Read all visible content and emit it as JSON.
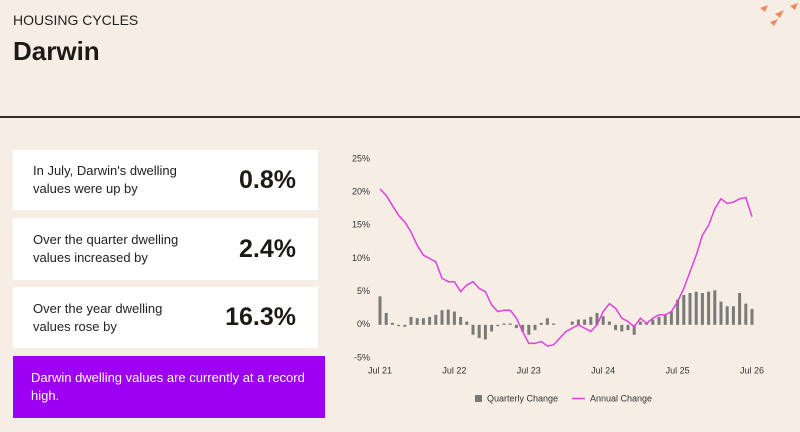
{
  "header": {
    "kicker": "HOUSING CYCLES",
    "title": "Darwin"
  },
  "stats": [
    {
      "text": "In July, Darwin's dwelling values were up by",
      "value": "0.8%"
    },
    {
      "text": "Over the quarter dwelling values increased by",
      "value": "2.4%"
    },
    {
      "text": "Over the year dwelling values rose by",
      "value": "16.3%"
    }
  ],
  "note": "Darwin dwelling values are currently at a record high.",
  "chart_data": {
    "type": "bar-line",
    "categories": [
      "Jul 21",
      null,
      null,
      null,
      null,
      null,
      null,
      null,
      null,
      null,
      null,
      null,
      "Jul 22",
      null,
      null,
      null,
      null,
      null,
      null,
      null,
      null,
      null,
      null,
      null,
      "Jul 23",
      null,
      null,
      null,
      null,
      null,
      null,
      null,
      null,
      null,
      null,
      null,
      "Jul 24",
      null,
      null,
      null,
      null,
      null,
      null,
      null,
      null,
      null,
      null,
      null,
      "Jul 25",
      null,
      null,
      null,
      null,
      null,
      null,
      null,
      null,
      null,
      null,
      null,
      "Jul 26"
    ],
    "series": [
      {
        "name": "Quarterly Change",
        "type": "bar",
        "color": "#7b7a76",
        "values": [
          4.3,
          1.8,
          0.3,
          -0.2,
          -0.3,
          1.2,
          1,
          1,
          1.2,
          1.5,
          2.2,
          2.3,
          2,
          1.2,
          0.5,
          -1.5,
          -2,
          -2.2,
          -1,
          -0.2,
          0.2,
          0.2,
          -0.5,
          -1,
          -1.5,
          -0.8,
          0.3,
          1,
          0.2,
          0,
          0,
          0.5,
          0.8,
          0.8,
          1.2,
          1.8,
          1.3,
          0.5,
          -0.8,
          -1,
          -0.8,
          -1.5,
          0.5,
          0.2,
          0.8,
          1.2,
          1.5,
          2,
          3.8,
          4.5,
          4.8,
          5,
          4.8,
          5,
          5.2,
          3.5,
          2.8,
          2.8,
          4.8,
          3.2,
          2.4
        ]
      },
      {
        "name": "Annual Change",
        "type": "line",
        "color": "#e03ee0",
        "values": [
          20.5,
          19.5,
          18,
          16.5,
          15.5,
          14,
          12,
          10.5,
          10,
          9.5,
          7,
          6.5,
          6.5,
          5,
          6,
          6.5,
          5.5,
          5,
          3,
          2,
          2.2,
          2.2,
          1,
          -1,
          -2.8,
          -2.8,
          -2.5,
          -3.2,
          -3,
          -2,
          -1,
          -0.5,
          0,
          -0.5,
          -1,
          0,
          2,
          3.2,
          2.5,
          1,
          0.5,
          -0.3,
          1,
          0.2,
          1,
          1.5,
          1.5,
          2,
          3.5,
          5.5,
          8,
          10.5,
          13.5,
          15,
          17.5,
          19,
          18.3,
          18.5,
          19,
          19.2,
          16.3
        ]
      }
    ],
    "ylim": [
      -5,
      25
    ],
    "yticks": [
      {
        "value": 25,
        "label": "25%"
      },
      {
        "value": 20,
        "label": "20%"
      },
      {
        "value": 15,
        "label": "15%"
      },
      {
        "value": 10,
        "label": "10%"
      },
      {
        "value": 5,
        "label": "5%"
      },
      {
        "value": 0,
        "label": "0%"
      },
      {
        "value": -5,
        "label": "-5%"
      }
    ]
  }
}
